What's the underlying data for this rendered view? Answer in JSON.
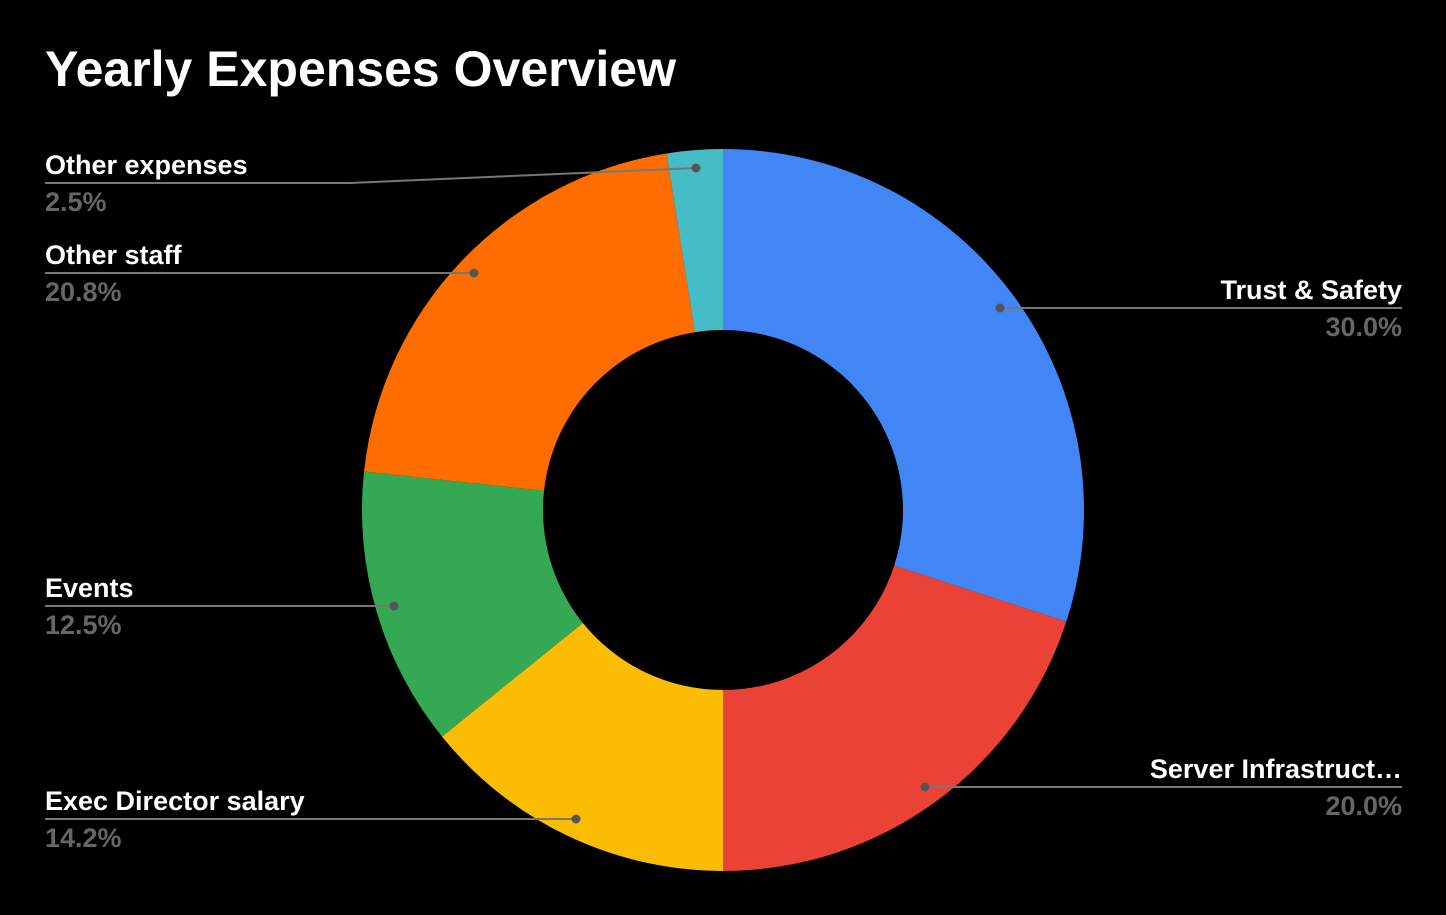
{
  "chart_data": {
    "type": "pie",
    "donut": true,
    "title": "Yearly Expenses Overview",
    "slices": [
      {
        "label": "Trust & Safety",
        "value": 30.0,
        "display": "30.0%",
        "color": "#4285F4"
      },
      {
        "label": "Server Infrastruct…",
        "value": 20.0,
        "display": "20.0%",
        "color": "#EA4335"
      },
      {
        "label": "Exec Director salary",
        "value": 14.2,
        "display": "14.2%",
        "color": "#FBBC04"
      },
      {
        "label": "Events",
        "value": 12.5,
        "display": "12.5%",
        "color": "#34A853"
      },
      {
        "label": "Other staff",
        "value": 20.8,
        "display": "20.8%",
        "color": "#FF6D01"
      },
      {
        "label": "Other expenses",
        "value": 2.5,
        "display": "2.5%",
        "color": "#46BDC6"
      }
    ],
    "label_color": "#FFFFFF",
    "percent_color": "#666666",
    "leader_color": "#777777",
    "background": "#000000"
  }
}
